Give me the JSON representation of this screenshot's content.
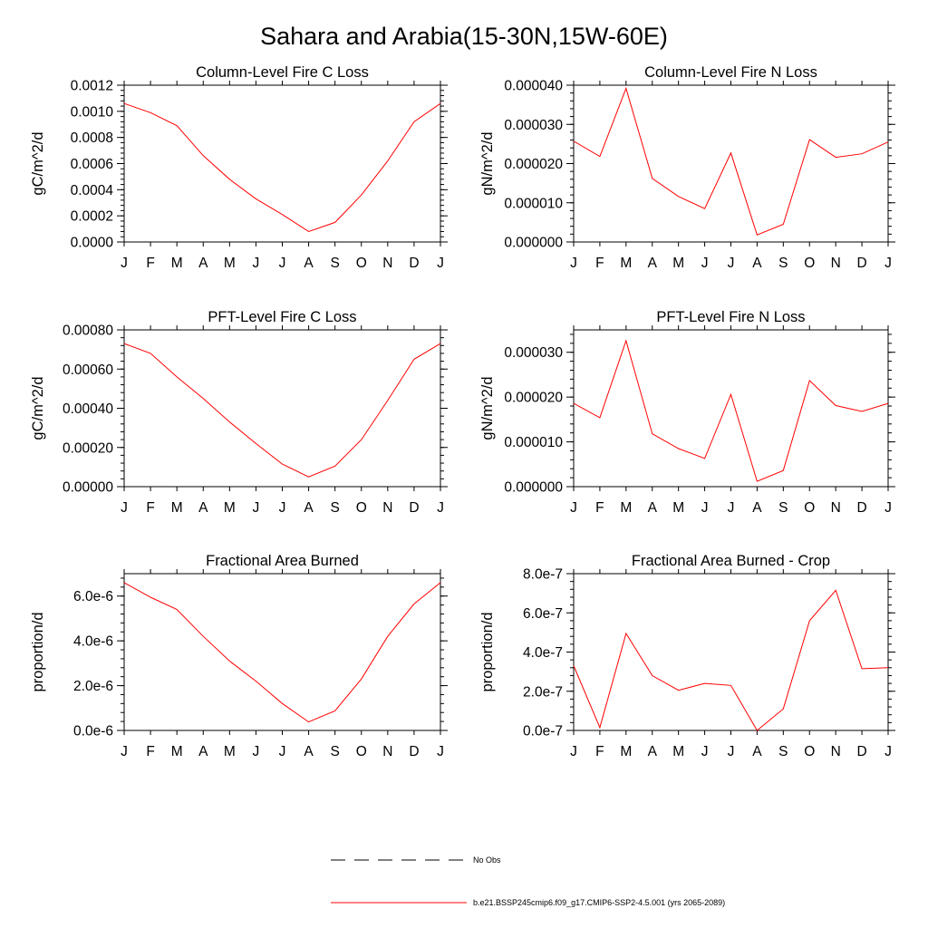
{
  "figure": {
    "title": "Sahara and Arabia(15-30N,15W-60E)"
  },
  "colors": {
    "model_line": "#ff0000",
    "obs_line": "#000000",
    "axis": "#000000",
    "background": "#ffffff"
  },
  "legend": {
    "entries": [
      {
        "label": "No Obs",
        "style": "dashed",
        "color": "#000000"
      },
      {
        "label": "b.e21.BSSP245cmip6.f09_g17.CMIP6-SSP2-4.5.001 (yrs 2065-2089)",
        "style": "solid",
        "color": "#ff0000"
      }
    ]
  },
  "chart_data": [
    {
      "type": "line",
      "title": "Column-Level Fire C Loss",
      "ylabel": "gC/m^2/d",
      "xlabel": "",
      "categories": [
        "J",
        "F",
        "M",
        "A",
        "M",
        "J",
        "J",
        "A",
        "S",
        "O",
        "N",
        "D",
        "J"
      ],
      "ylim": [
        0,
        0.0012
      ],
      "yticks": [
        "0.0000",
        "0.0002",
        "0.0004",
        "0.0006",
        "0.0008",
        "0.0010",
        "0.0012"
      ],
      "series": [
        {
          "values": [
            0.00106,
            0.00099,
            0.00089,
            0.00066,
            0.00048,
            0.00033,
            0.00021,
            8e-05,
            0.00015,
            0.00036,
            0.00062,
            0.00092,
            0.00106
          ]
        }
      ],
      "grid": false
    },
    {
      "type": "line",
      "title": "Column-Level Fire N Loss",
      "ylabel": "gN/m^2/d",
      "xlabel": "",
      "categories": [
        "J",
        "F",
        "M",
        "A",
        "M",
        "J",
        "J",
        "A",
        "S",
        "O",
        "N",
        "D",
        "J"
      ],
      "ylim": [
        0,
        4e-05
      ],
      "yticks": [
        "0.000000",
        "0.000010",
        "0.000020",
        "0.000030",
        "0.000040"
      ],
      "series": [
        {
          "values": [
            2.57e-05,
            2.18e-05,
            3.92e-05,
            1.62e-05,
            1.16e-05,
            8.5e-06,
            2.27e-05,
            1.8e-06,
            4.5e-06,
            2.61e-05,
            2.16e-05,
            2.25e-05,
            2.55e-05
          ]
        }
      ],
      "grid": false
    },
    {
      "type": "line",
      "title": "PFT-Level Fire C Loss",
      "ylabel": "gC/m^2/d",
      "xlabel": "",
      "categories": [
        "J",
        "F",
        "M",
        "A",
        "M",
        "J",
        "J",
        "A",
        "S",
        "O",
        "N",
        "D",
        "J"
      ],
      "ylim": [
        0,
        0.0008
      ],
      "yticks": [
        "0.00000",
        "0.00020",
        "0.00040",
        "0.00060",
        "0.00080"
      ],
      "series": [
        {
          "values": [
            0.00073,
            0.00068,
            0.00056,
            0.00045,
            0.00033,
            0.00022,
            0.000115,
            5e-05,
            0.000105,
            0.00024,
            0.00044,
            0.00065,
            0.00073
          ]
        }
      ],
      "grid": false
    },
    {
      "type": "line",
      "title": "PFT-Level Fire N Loss",
      "ylabel": "gN/m^2/d",
      "xlabel": "",
      "categories": [
        "J",
        "F",
        "M",
        "A",
        "M",
        "J",
        "J",
        "A",
        "S",
        "O",
        "N",
        "D",
        "J"
      ],
      "ylim": [
        0,
        3.5e-05
      ],
      "yticks": [
        "0.000000",
        "0.000010",
        "0.000020",
        "0.000030"
      ],
      "series": [
        {
          "values": [
            1.86e-05,
            1.54e-05,
            3.26e-05,
            1.18e-05,
            8.5e-06,
            6.3e-06,
            2.06e-05,
            1.2e-06,
            3.6e-06,
            2.37e-05,
            1.81e-05,
            1.68e-05,
            1.86e-05
          ]
        }
      ],
      "grid": false
    },
    {
      "type": "line",
      "title": "Fractional Area Burned",
      "ylabel": "proportion/d",
      "xlabel": "",
      "categories": [
        "J",
        "F",
        "M",
        "A",
        "M",
        "J",
        "J",
        "A",
        "S",
        "O",
        "N",
        "D",
        "J"
      ],
      "ylim": [
        0,
        7e-06
      ],
      "yticks": [
        "0.0e-6",
        "2.0e-6",
        "4.0e-6",
        "6.0e-6"
      ],
      "series": [
        {
          "values": [
            6.6e-06,
            5.95e-06,
            5.4e-06,
            4.2e-06,
            3.1e-06,
            2.2e-06,
            1.2e-06,
            3.8e-07,
            8.8e-07,
            2.3e-06,
            4.2e-06,
            5.65e-06,
            6.6e-06
          ]
        }
      ],
      "grid": false
    },
    {
      "type": "line",
      "title": "Fractional Area Burned - Crop",
      "ylabel": "proportion/d",
      "xlabel": "",
      "categories": [
        "J",
        "F",
        "M",
        "A",
        "M",
        "J",
        "J",
        "A",
        "S",
        "O",
        "N",
        "D",
        "J"
      ],
      "ylim": [
        0,
        8e-07
      ],
      "yticks": [
        "0.0e-7",
        "2.0e-7",
        "4.0e-7",
        "6.0e-7",
        "8.0e-7"
      ],
      "series": [
        {
          "values": [
            3.3e-07,
            1.5e-08,
            4.95e-07,
            2.8e-07,
            2.05e-07,
            2.4e-07,
            2.3e-07,
            0.0,
            1.1e-07,
            5.6e-07,
            7.15e-07,
            3.15e-07,
            3.2e-07
          ]
        }
      ],
      "grid": false
    }
  ]
}
